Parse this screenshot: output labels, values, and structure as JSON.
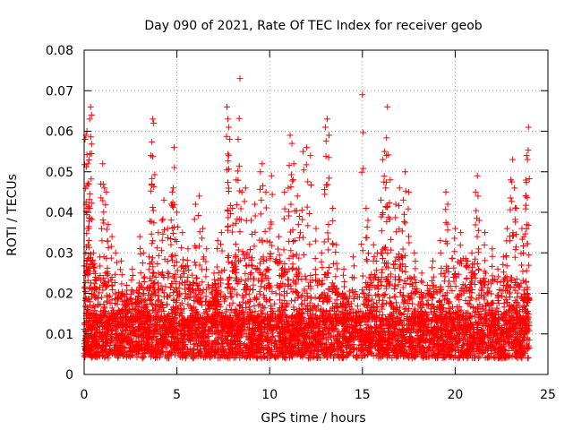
{
  "chart_data": {
    "type": "scatter",
    "title": "Day 090 of 2021, Rate Of TEC Index for receiver geob",
    "xlabel": "GPS time / hours",
    "ylabel": "ROTI / TECUs",
    "xlim": [
      0,
      25
    ],
    "ylim": [
      0,
      0.08
    ],
    "xticks": [
      0,
      5,
      10,
      15,
      20,
      25
    ],
    "xtick_labels": [
      "0",
      "5",
      "10",
      "15",
      "20",
      "25"
    ],
    "yticks": [
      0,
      0.01,
      0.02,
      0.03,
      0.04,
      0.05,
      0.06,
      0.07,
      0.08
    ],
    "ytick_labels": [
      "0",
      "0.01",
      "0.02",
      "0.03",
      "0.04",
      "0.05",
      "0.06",
      "0.07",
      "0.08"
    ],
    "grid": true,
    "marker": "+",
    "marker_color": "#ff0000",
    "series": [
      {
        "name": "ROTI",
        "points": [
          [
            0.05,
            0.058
          ],
          [
            0.1,
            0.059
          ],
          [
            0.15,
            0.06
          ],
          [
            0.2,
            0.052
          ],
          [
            0.25,
            0.047
          ],
          [
            0.3,
            0.063
          ],
          [
            0.35,
            0.066
          ],
          [
            0.4,
            0.064
          ],
          [
            0.3,
            0.041
          ],
          [
            0.2,
            0.036
          ],
          [
            0.5,
            0.03
          ],
          [
            0.6,
            0.024
          ],
          [
            0.9,
            0.047
          ],
          [
            1.0,
            0.052
          ],
          [
            1.1,
            0.046
          ],
          [
            1.2,
            0.045
          ],
          [
            1.3,
            0.037
          ],
          [
            1.5,
            0.034
          ],
          [
            1.7,
            0.03
          ],
          [
            2.0,
            0.028
          ],
          [
            2.3,
            0.022
          ],
          [
            2.6,
            0.026
          ],
          [
            3.0,
            0.034
          ],
          [
            3.2,
            0.03
          ],
          [
            3.5,
            0.029
          ],
          [
            3.6,
            0.054
          ],
          [
            3.65,
            0.047
          ],
          [
            3.7,
            0.063
          ],
          [
            3.75,
            0.062
          ],
          [
            4.0,
            0.035
          ],
          [
            4.2,
            0.038
          ],
          [
            4.3,
            0.043
          ],
          [
            4.5,
            0.036
          ],
          [
            4.7,
            0.042
          ],
          [
            4.75,
            0.045
          ],
          [
            4.8,
            0.046
          ],
          [
            4.85,
            0.056
          ],
          [
            5.0,
            0.04
          ],
          [
            5.3,
            0.035
          ],
          [
            5.6,
            0.031
          ],
          [
            6.0,
            0.042
          ],
          [
            6.2,
            0.044
          ],
          [
            6.4,
            0.036
          ],
          [
            6.6,
            0.031
          ],
          [
            7.0,
            0.025
          ],
          [
            7.2,
            0.033
          ],
          [
            7.4,
            0.035
          ],
          [
            7.7,
            0.066
          ],
          [
            7.75,
            0.063
          ],
          [
            7.8,
            0.061
          ],
          [
            7.85,
            0.058
          ],
          [
            8.0,
            0.041
          ],
          [
            8.2,
            0.048
          ],
          [
            8.3,
            0.058
          ],
          [
            8.4,
            0.073
          ],
          [
            8.5,
            0.045
          ],
          [
            8.7,
            0.046
          ],
          [
            9.0,
            0.038
          ],
          [
            9.2,
            0.042
          ],
          [
            9.5,
            0.05
          ],
          [
            9.6,
            0.052
          ],
          [
            9.8,
            0.045
          ],
          [
            10.0,
            0.036
          ],
          [
            10.1,
            0.049
          ],
          [
            10.5,
            0.034
          ],
          [
            10.8,
            0.045
          ],
          [
            11.0,
            0.046
          ],
          [
            11.1,
            0.059
          ],
          [
            11.2,
            0.057
          ],
          [
            11.3,
            0.052
          ],
          [
            11.5,
            0.044
          ],
          [
            11.6,
            0.039
          ],
          [
            11.8,
            0.055
          ],
          [
            12.0,
            0.056
          ],
          [
            12.2,
            0.054
          ],
          [
            12.5,
            0.036
          ],
          [
            12.8,
            0.03
          ],
          [
            13.0,
            0.061
          ],
          [
            13.1,
            0.063
          ],
          [
            13.2,
            0.059
          ],
          [
            13.4,
            0.041
          ],
          [
            13.6,
            0.032
          ],
          [
            14.0,
            0.026
          ],
          [
            14.5,
            0.029
          ],
          [
            15.0,
            0.069
          ],
          [
            15.2,
            0.041
          ],
          [
            15.3,
            0.038
          ],
          [
            15.6,
            0.032
          ],
          [
            15.8,
            0.03
          ],
          [
            16.0,
            0.043
          ],
          [
            16.1,
            0.053
          ],
          [
            16.2,
            0.055
          ],
          [
            16.3,
            0.054
          ],
          [
            16.35,
            0.066
          ],
          [
            16.5,
            0.048
          ],
          [
            16.8,
            0.042
          ],
          [
            17.0,
            0.046
          ],
          [
            17.2,
            0.043
          ],
          [
            17.3,
            0.05
          ],
          [
            17.5,
            0.045
          ],
          [
            17.8,
            0.03
          ],
          [
            18.2,
            0.025
          ],
          [
            18.5,
            0.022
          ],
          [
            18.8,
            0.028
          ],
          [
            19.2,
            0.033
          ],
          [
            19.5,
            0.045
          ],
          [
            19.6,
            0.042
          ],
          [
            20.0,
            0.036
          ],
          [
            20.3,
            0.035
          ],
          [
            20.6,
            0.028
          ],
          [
            20.9,
            0.03
          ],
          [
            21.1,
            0.045
          ],
          [
            21.2,
            0.049
          ],
          [
            21.3,
            0.038
          ],
          [
            21.6,
            0.035
          ],
          [
            22.0,
            0.031
          ],
          [
            22.3,
            0.026
          ],
          [
            22.6,
            0.029
          ],
          [
            22.8,
            0.036
          ],
          [
            23.0,
            0.048
          ],
          [
            23.1,
            0.053
          ],
          [
            23.2,
            0.046
          ],
          [
            23.3,
            0.041
          ],
          [
            23.6,
            0.036
          ],
          [
            23.7,
            0.034
          ],
          [
            23.8,
            0.044
          ],
          [
            23.85,
            0.054
          ],
          [
            23.9,
            0.053
          ],
          [
            23.95,
            0.061
          ],
          [
            23.9,
            0.021
          ]
        ]
      }
    ],
    "baseline_band": {
      "description_free": true,
      "x_range": [
        0,
        24
      ],
      "y_core": [
        0.004,
        0.014
      ],
      "y_ceiling_profile": [
        [
          0,
          0.028
        ],
        [
          1,
          0.028
        ],
        [
          2,
          0.02
        ],
        [
          3,
          0.022
        ],
        [
          4,
          0.026
        ],
        [
          5,
          0.03
        ],
        [
          6,
          0.024
        ],
        [
          7,
          0.022
        ],
        [
          8,
          0.03
        ],
        [
          9,
          0.03
        ],
        [
          10,
          0.03
        ],
        [
          11,
          0.028
        ],
        [
          12,
          0.024
        ],
        [
          13,
          0.026
        ],
        [
          14,
          0.02
        ],
        [
          15,
          0.022
        ],
        [
          16,
          0.028
        ],
        [
          17,
          0.03
        ],
        [
          18,
          0.022
        ],
        [
          19,
          0.022
        ],
        [
          20,
          0.03
        ],
        [
          21,
          0.028
        ],
        [
          22,
          0.024
        ],
        [
          23,
          0.024
        ],
        [
          24,
          0.02
        ]
      ],
      "count": 5200
    }
  }
}
